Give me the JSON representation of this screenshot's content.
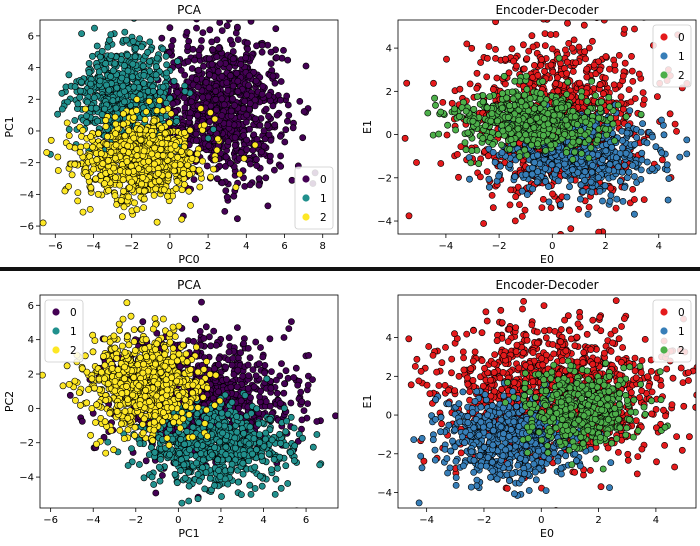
{
  "chart_data": [
    {
      "type": "scatter",
      "title": "PCA",
      "xlabel": "PC0",
      "ylabel": "PC1",
      "xlim": [
        -6.8,
        8.8
      ],
      "ylim": [
        -6.5,
        7.0
      ],
      "xticks": [
        -6,
        -4,
        -2,
        0,
        2,
        4,
        6,
        8
      ],
      "yticks": [
        -6,
        -4,
        -2,
        0,
        2,
        4,
        6
      ],
      "legend_position": "lower-right",
      "series": [
        {
          "name": "0",
          "color": "#440154",
          "center": [
            2.8,
            1.5
          ],
          "spread": [
            1.6,
            2.3
          ],
          "count": 900
        },
        {
          "name": "1",
          "color": "#21908d",
          "center": [
            -2.4,
            2.3
          ],
          "spread": [
            1.3,
            1.6
          ],
          "count": 650
        },
        {
          "name": "2",
          "color": "#fde725",
          "center": [
            -1.6,
            -1.8
          ],
          "spread": [
            1.6,
            1.3
          ],
          "count": 850
        }
      ]
    },
    {
      "type": "scatter",
      "title": "Encoder-Decoder",
      "xlabel": "E0",
      "ylabel": "E1",
      "xlim": [
        -5.8,
        5.4
      ],
      "ylim": [
        -4.6,
        5.3
      ],
      "xticks": [
        -4,
        -2,
        0,
        2,
        4
      ],
      "yticks": [
        -4,
        -2,
        0,
        2,
        4
      ],
      "legend_position": "upper-right",
      "series": [
        {
          "name": "0",
          "color": "#e41a1c",
          "center": [
            0.1,
            0.6
          ],
          "spread": [
            1.7,
            1.9
          ],
          "count": 1000
        },
        {
          "name": "1",
          "color": "#377eb8",
          "center": [
            0.9,
            -0.9
          ],
          "spread": [
            1.5,
            0.9
          ],
          "count": 600
        },
        {
          "name": "2",
          "color": "#4daf4a",
          "center": [
            -0.8,
            0.7
          ],
          "spread": [
            1.4,
            0.7
          ],
          "count": 550
        }
      ]
    },
    {
      "type": "scatter",
      "title": "PCA",
      "xlabel": "PC1",
      "ylabel": "PC2",
      "xlim": [
        -6.5,
        7.5
      ],
      "ylim": [
        -5.8,
        6.6
      ],
      "xticks": [
        -6,
        -4,
        -2,
        0,
        2,
        4,
        6
      ],
      "yticks": [
        -4,
        -2,
        0,
        2,
        4,
        6
      ],
      "legend_position": "upper-left",
      "series": [
        {
          "name": "0",
          "color": "#440154",
          "center": [
            1.2,
            0.7
          ],
          "spread": [
            2.2,
            1.7
          ],
          "count": 900
        },
        {
          "name": "1",
          "color": "#21908d",
          "center": [
            1.8,
            -2.2
          ],
          "spread": [
            1.7,
            1.2
          ],
          "count": 700
        },
        {
          "name": "2",
          "color": "#fde725",
          "center": [
            -1.6,
            1.4
          ],
          "spread": [
            1.3,
            1.4
          ],
          "count": 800
        }
      ]
    },
    {
      "type": "scatter",
      "title": "Encoder-Decoder",
      "xlabel": "E0",
      "ylabel": "E1",
      "xlim": [
        -5.0,
        5.4
      ],
      "ylim": [
        -4.8,
        6.2
      ],
      "xticks": [
        -4,
        -2,
        0,
        2,
        4
      ],
      "yticks": [
        -4,
        -2,
        0,
        2,
        4
      ],
      "legend_position": "upper-right",
      "series": [
        {
          "name": "0",
          "color": "#e41a1c",
          "center": [
            0.3,
            1.1
          ],
          "spread": [
            2.0,
            1.8
          ],
          "count": 1100
        },
        {
          "name": "1",
          "color": "#377eb8",
          "center": [
            -1.1,
            -1.2
          ],
          "spread": [
            1.2,
            1.1
          ],
          "count": 650
        },
        {
          "name": "2",
          "color": "#4daf4a",
          "center": [
            1.4,
            0.3
          ],
          "spread": [
            1.0,
            1.0
          ],
          "count": 450
        }
      ]
    }
  ]
}
